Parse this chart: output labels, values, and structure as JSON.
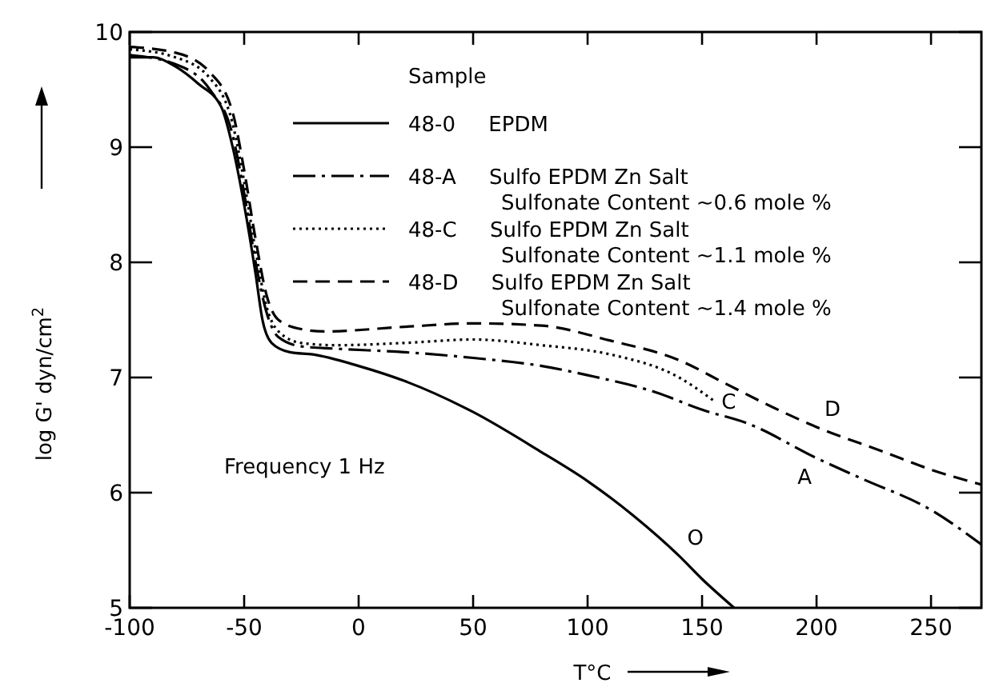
{
  "chart_data": {
    "type": "line",
    "xlabel": "T°C",
    "ylabel": "log G' dyn/cm$^{2}$",
    "legend_title": "Sample",
    "legend": "top",
    "grid": false,
    "xlim": [
      -100,
      272
    ],
    "xticks": [
      -100,
      -50,
      0,
      50,
      100,
      150,
      200,
      250
    ],
    "ylim": [
      5,
      10
    ],
    "yticks": [
      5,
      6,
      7,
      8,
      9,
      10
    ],
    "series": [
      {
        "name": "48-0  EPDM",
        "color": "#000000",
        "line_style": "solid",
        "x": [
          -100,
          -90,
          -80,
          -70,
          -60,
          -55,
          -50,
          -45,
          -42,
          -38,
          -30,
          -20,
          0,
          20,
          50,
          80,
          100,
          120,
          140,
          150,
          164
        ],
        "values": [
          9.78,
          9.78,
          9.7,
          9.55,
          9.35,
          9.0,
          8.5,
          7.9,
          7.5,
          7.3,
          7.22,
          7.2,
          7.1,
          6.97,
          6.7,
          6.35,
          6.1,
          5.8,
          5.45,
          5.25,
          5.0
        ]
      },
      {
        "name": "48-A  Sulfo EPDM Zn Salt\nSulfonate Content ~0.6 mole %",
        "color": "#000000",
        "line_style": "dashdot",
        "x": [
          -100,
          -80,
          -65,
          -55,
          -50,
          -45,
          -40,
          -35,
          -25,
          -10,
          20,
          50,
          80,
          100,
          130,
          150,
          170,
          200,
          220,
          250,
          272
        ],
        "values": [
          9.8,
          9.72,
          9.5,
          9.1,
          8.6,
          8.0,
          7.55,
          7.35,
          7.27,
          7.25,
          7.22,
          7.17,
          7.1,
          7.02,
          6.87,
          6.72,
          6.6,
          6.3,
          6.12,
          5.85,
          5.55
        ]
      },
      {
        "name": "48-C  Sulfo EPDM Zn Salt\nSulfonate Content ~1.1 mole %",
        "color": "#000000",
        "line_style": "dotted",
        "x": [
          -100,
          -80,
          -65,
          -55,
          -50,
          -45,
          -40,
          -35,
          -25,
          -10,
          20,
          50,
          80,
          110,
          140,
          155
        ],
        "values": [
          9.85,
          9.78,
          9.6,
          9.2,
          8.7,
          8.1,
          7.6,
          7.4,
          7.3,
          7.28,
          7.3,
          7.33,
          7.28,
          7.2,
          7.0,
          6.8
        ]
      },
      {
        "name": "48-D  Sulfo EPDM Zn Salt\nSulfonate Content ~1.4 mole %",
        "color": "#000000",
        "line_style": "dashed",
        "x": [
          -100,
          -80,
          -65,
          -55,
          -50,
          -45,
          -40,
          -35,
          -25,
          -15,
          20,
          50,
          80,
          110,
          140,
          160,
          180,
          200,
          230,
          250,
          272
        ],
        "values": [
          9.87,
          9.82,
          9.65,
          9.3,
          8.8,
          8.2,
          7.7,
          7.5,
          7.42,
          7.4,
          7.44,
          7.47,
          7.45,
          7.32,
          7.15,
          6.95,
          6.75,
          6.57,
          6.35,
          6.2,
          6.07
        ]
      }
    ],
    "annotations": [
      "Frequency 1 Hz",
      {
        "text": "O",
        "x": 140,
        "y": 5.45
      },
      {
        "text": "A",
        "x": 200,
        "y": 6.3
      },
      {
        "text": "C",
        "x": 155,
        "y": 6.8
      },
      {
        "text": "D",
        "x": 200,
        "y": 6.57
      }
    ]
  }
}
